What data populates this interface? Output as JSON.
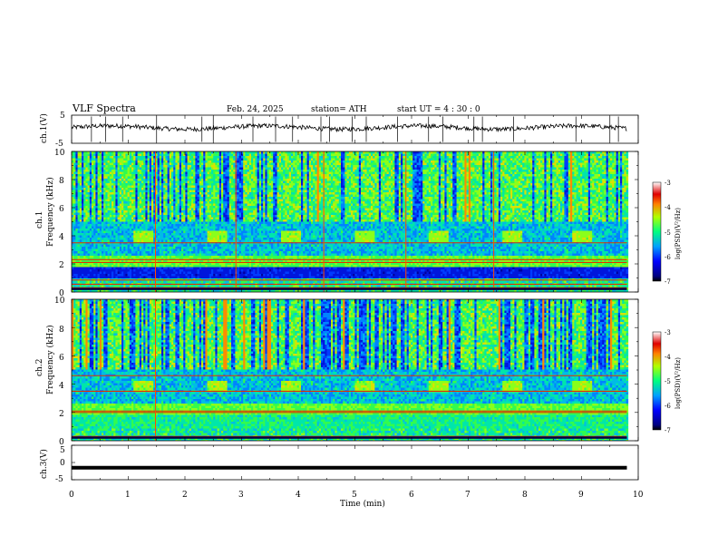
{
  "header": {
    "title": "VLF  Spectra",
    "date": "Feb. 24, 2025",
    "station": "station= ATH",
    "start_ut": "start  UT  =   4  : 30 : 0"
  },
  "chart_data": [
    {
      "type": "line",
      "id": "ch1-waveform",
      "ylabel": "ch.1(V)",
      "yticks": [
        "5",
        "-5"
      ],
      "ylim": [
        -5,
        5
      ],
      "xlim": [
        0,
        10
      ],
      "baseline_level": 0.6,
      "spikes_min": [
        0.35,
        0.6,
        0.9,
        1.5,
        2.3,
        2.5,
        3.2,
        3.6,
        3.9,
        4.4,
        4.55,
        4.95,
        5.2,
        5.75,
        6.3,
        6.55,
        7.1,
        7.25,
        7.8,
        8.9,
        9.5,
        9.65
      ]
    },
    {
      "type": "heatmap",
      "id": "ch1-spectrogram",
      "ylabel_line1": "ch.1",
      "ylabel_line2": "Frequency  (kHz)",
      "yticks": [
        "0",
        "2",
        "4",
        "6",
        "8",
        "10"
      ],
      "ylim": [
        0,
        10
      ],
      "xlim": [
        0,
        9.8
      ],
      "z_unit": "log(PSD)(V²/Hz)",
      "colorbar_ticks": [
        "-3",
        "-4",
        "-5",
        "-6",
        "-7"
      ],
      "zlim": [
        -7,
        -3
      ],
      "periodic_band_khz": [
        3.6,
        4.3
      ],
      "periodic_band_starts_min": [
        1.1,
        2.4,
        3.7,
        5.0,
        6.3,
        7.6,
        8.85
      ],
      "periodic_band_duration_min": 0.35,
      "horizontal_lines_khz": [
        0.3,
        0.55,
        0.85,
        2.1,
        2.3,
        3.5
      ],
      "vertical_lines_min": [
        1.48,
        2.9,
        4.45,
        5.9,
        7.45
      ]
    },
    {
      "type": "heatmap",
      "id": "ch2-spectrogram",
      "ylabel_line1": "ch.2",
      "ylabel_line2": "Frequency  (kHz)",
      "yticks": [
        "0",
        "2",
        "4",
        "6",
        "8",
        "10"
      ],
      "ylim": [
        0,
        10
      ],
      "xlim": [
        0,
        9.8
      ],
      "z_unit": "log(PSD)(V²/Hz)",
      "colorbar_ticks": [
        "-3",
        "-4",
        "-5",
        "-6",
        "-7"
      ],
      "zlim": [
        -7,
        -3
      ],
      "periodic_band_khz": [
        3.5,
        4.2
      ],
      "periodic_band_starts_min": [
        1.1,
        2.4,
        3.7,
        5.0,
        6.3,
        7.6,
        8.85
      ],
      "periodic_band_duration_min": 0.35,
      "horizontal_lines_khz": [
        0.3,
        2.0,
        2.1,
        3.5,
        4.6
      ],
      "vertical_lines_min": [
        1.48
      ]
    },
    {
      "type": "line",
      "id": "ch3-waveform",
      "ylabel": "ch.3(V)",
      "yticks": [
        "5",
        "0",
        "-5"
      ],
      "ylim": [
        -5,
        5
      ],
      "xlim": [
        0,
        10
      ],
      "baseline_level": -1.5
    }
  ],
  "xaxis": {
    "label": "Time  (min)",
    "ticks": [
      "0",
      "1",
      "2",
      "3",
      "4",
      "5",
      "6",
      "7",
      "8",
      "9",
      "10"
    ]
  }
}
